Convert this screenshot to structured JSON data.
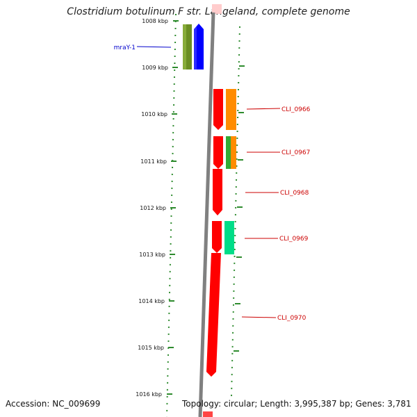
{
  "title": "Clostridium botulinum F str. Langeland, complete genome",
  "footer": {
    "accession": "Accession: NC_009699",
    "topology": "Topology: circular; Length: 3,995,387 bp; Genes: 3,781"
  },
  "ticks": [
    "1008 kbp",
    "1009 kbp",
    "1010 kbp",
    "1011 kbp",
    "1012 kbp",
    "1013 kbp",
    "1014 kbp",
    "1015 kbp",
    "1016 kbp"
  ],
  "genes": [
    {
      "name": "mraY-1",
      "color": "#0000cc"
    },
    {
      "name": "CLI_0966",
      "color": "#cc0000"
    },
    {
      "name": "CLI_0967",
      "color": "#cc0000"
    },
    {
      "name": "CLI_0968",
      "color": "#cc0000"
    },
    {
      "name": "CLI_0969",
      "color": "#cc0000"
    },
    {
      "name": "CLI_0970",
      "color": "#cc0000"
    }
  ],
  "colors": {
    "backbone": "#808080",
    "tick_marks": "#2e8b2e",
    "forward_olive": "#6b8e23",
    "forward_blue": "#0000ff",
    "reverse_red": "#ff0000",
    "reverse_orange": "#ff8c00",
    "green": "#33aa33",
    "teal": "#00dd88"
  }
}
